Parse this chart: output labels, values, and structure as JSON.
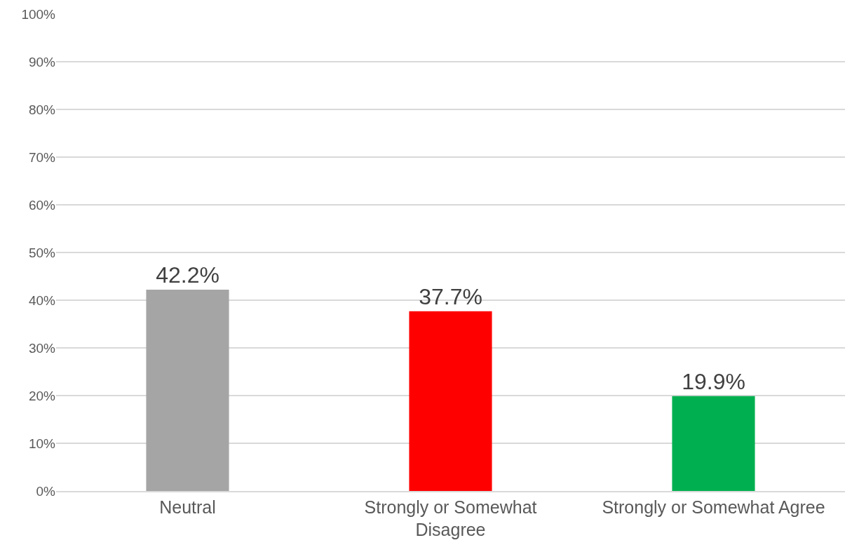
{
  "chart_data": {
    "type": "bar",
    "categories": [
      "Neutral",
      "Strongly or Somewhat Disagree",
      "Strongly or Somewhat Agree"
    ],
    "values": [
      42.2,
      37.7,
      19.9
    ],
    "colors": [
      "#a5a5a5",
      "#ff0000",
      "#00b050"
    ],
    "value_labels": [
      "42.2%",
      "37.7%",
      "19.9%"
    ],
    "ylim": [
      0,
      100
    ],
    "yticks": [
      {
        "value": 0,
        "label": "0%"
      },
      {
        "value": 10,
        "label": "10%"
      },
      {
        "value": 20,
        "label": "20%"
      },
      {
        "value": 30,
        "label": "30%"
      },
      {
        "value": 40,
        "label": "40%"
      },
      {
        "value": 50,
        "label": "50%"
      },
      {
        "value": 60,
        "label": "60%"
      },
      {
        "value": 70,
        "label": "70%"
      },
      {
        "value": 80,
        "label": "80%"
      },
      {
        "value": 90,
        "label": "90%"
      },
      {
        "value": 100,
        "label": "100%"
      }
    ],
    "grid": "y",
    "legend": false
  }
}
